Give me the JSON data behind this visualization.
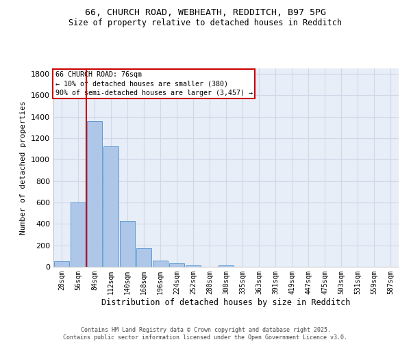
{
  "title_line1": "66, CHURCH ROAD, WEBHEATH, REDDITCH, B97 5PG",
  "title_line2": "Size of property relative to detached houses in Redditch",
  "xlabel": "Distribution of detached houses by size in Redditch",
  "ylabel": "Number of detached properties",
  "footer_line1": "Contains HM Land Registry data © Crown copyright and database right 2025.",
  "footer_line2": "Contains public sector information licensed under the Open Government Licence v3.0.",
  "bin_labels": [
    "28sqm",
    "56sqm",
    "84sqm",
    "112sqm",
    "140sqm",
    "168sqm",
    "196sqm",
    "224sqm",
    "252sqm",
    "280sqm",
    "308sqm",
    "335sqm",
    "363sqm",
    "391sqm",
    "419sqm",
    "447sqm",
    "475sqm",
    "503sqm",
    "531sqm",
    "559sqm",
    "587sqm"
  ],
  "bar_values": [
    50,
    600,
    1360,
    1120,
    430,
    170,
    60,
    35,
    10,
    0,
    15,
    0,
    0,
    0,
    0,
    0,
    0,
    0,
    0,
    0,
    0
  ],
  "bar_color": "#aec6e8",
  "bar_edge_color": "#5b9bd5",
  "grid_color": "#d0d8e8",
  "bg_color": "#e8eef8",
  "vline_x": 1.5,
  "vline_color": "#cc0000",
  "annotation_text": "66 CHURCH ROAD: 76sqm\n← 10% of detached houses are smaller (380)\n90% of semi-detached houses are larger (3,457) →",
  "annotation_box_color": "#cc0000",
  "ylim": [
    0,
    1850
  ],
  "yticks": [
    0,
    200,
    400,
    600,
    800,
    1000,
    1200,
    1400,
    1600,
    1800
  ]
}
